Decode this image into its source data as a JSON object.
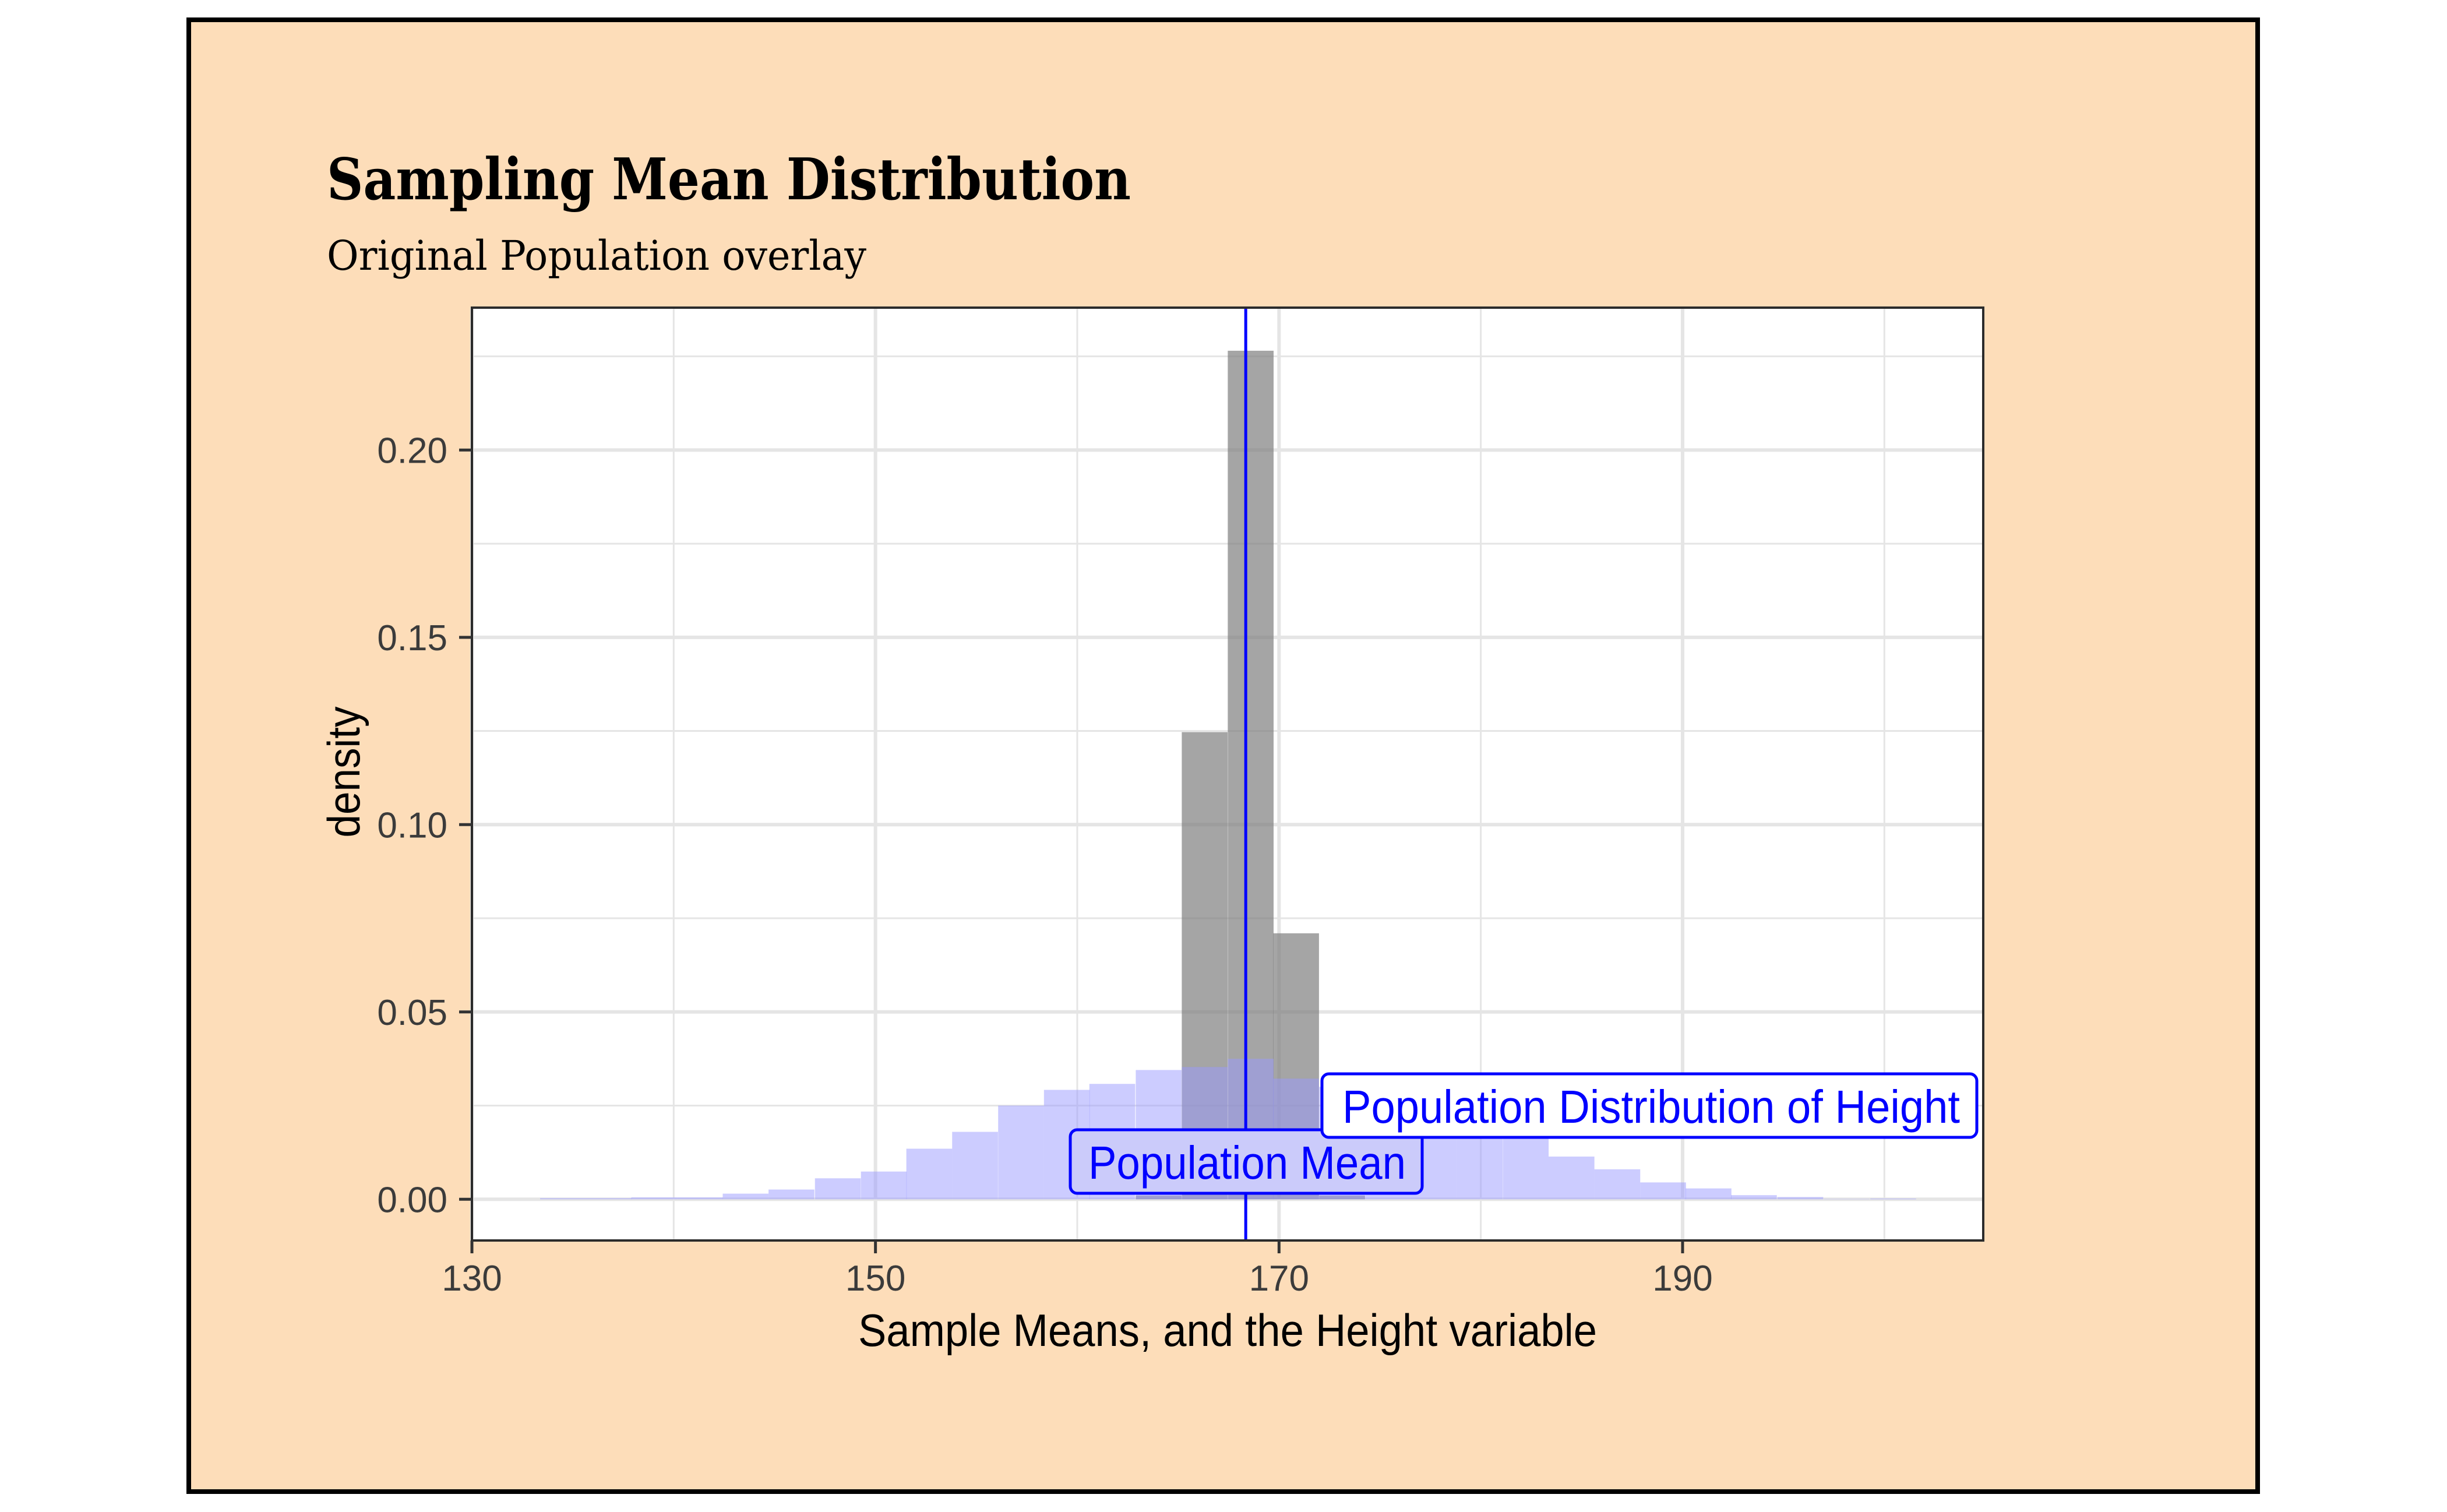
{
  "chart_data": {
    "type": "bar",
    "title": "Sampling Mean Distribution",
    "subtitle": "Original Population overlay",
    "xlabel": "Sample Means, and the Height variable",
    "ylabel": "density",
    "xlim": [
      130,
      204.9
    ],
    "ylim": [
      -0.011,
      0.238
    ],
    "x_ticks": [
      130,
      150,
      170,
      190
    ],
    "x_tick_labels": [
      "130",
      "150",
      "170",
      "190"
    ],
    "y_ticks": [
      0.0,
      0.05,
      0.1,
      0.15,
      0.2
    ],
    "y_tick_labels": [
      "0.00",
      "0.05",
      "0.10",
      "0.15",
      "0.20"
    ],
    "grid": true,
    "colors": {
      "background": "#FDDDB9",
      "panel": "#FFFFFF",
      "grid": "#E5E5E5",
      "sample_means_fill": "#7F7F7F",
      "population_fill": "#9999FF",
      "mean_line": "#0000FF",
      "label_text": "#0000FF"
    },
    "series": [
      {
        "name": "Population Distribution of Height",
        "bin_width": 2.27,
        "bins": [
          {
            "x0": 133.38,
            "density": 0.0003
          },
          {
            "x0": 135.65,
            "density": 0.0003
          },
          {
            "x0": 137.9,
            "density": 0.0005
          },
          {
            "x0": 140.17,
            "density": 0.0005
          },
          {
            "x0": 142.43,
            "density": 0.0015
          },
          {
            "x0": 144.7,
            "density": 0.0026
          },
          {
            "x0": 147.0,
            "density": 0.0056
          },
          {
            "x0": 149.28,
            "density": 0.0074
          },
          {
            "x0": 151.53,
            "density": 0.0135
          },
          {
            "x0": 153.8,
            "density": 0.018
          },
          {
            "x0": 156.08,
            "density": 0.025
          },
          {
            "x0": 158.35,
            "density": 0.0292
          },
          {
            "x0": 160.6,
            "density": 0.0308
          },
          {
            "x0": 162.9,
            "density": 0.0345
          },
          {
            "x0": 165.18,
            "density": 0.0353
          },
          {
            "x0": 167.46,
            "density": 0.0375
          },
          {
            "x0": 169.71,
            "density": 0.0322
          },
          {
            "x0": 171.99,
            "density": 0.03
          },
          {
            "x0": 174.27,
            "density": 0.028
          },
          {
            "x0": 176.54,
            "density": 0.025
          },
          {
            "x0": 178.81,
            "density": 0.021
          },
          {
            "x0": 181.09,
            "density": 0.018
          },
          {
            "x0": 183.36,
            "density": 0.0114
          },
          {
            "x0": 185.63,
            "density": 0.008
          },
          {
            "x0": 187.9,
            "density": 0.0045
          },
          {
            "x0": 190.15,
            "density": 0.0029
          },
          {
            "x0": 192.4,
            "density": 0.0011
          },
          {
            "x0": 194.7,
            "density": 0.0006
          },
          {
            "x0": 197.0,
            "density": 0.0001
          },
          {
            "x0": 199.3,
            "density": 0.0002
          }
        ]
      },
      {
        "name": "Sample Means",
        "bin_width": 2.27,
        "bins": [
          {
            "x0": 162.9,
            "density": 0.001
          },
          {
            "x0": 165.18,
            "density": 0.1247
          },
          {
            "x0": 167.46,
            "density": 0.2265
          },
          {
            "x0": 169.71,
            "density": 0.071
          },
          {
            "x0": 171.99,
            "density": 0.001
          }
        ]
      }
    ],
    "vlines": [
      {
        "name": "Population Mean",
        "x": 168.35
      }
    ],
    "annotations": [
      {
        "text": "Population Mean",
        "x": 168.35,
        "y": 0.001,
        "fill": "#CBCBFA"
      },
      {
        "text": "Population Distribution of Height",
        "x": 188.3,
        "y": 0.0165,
        "fill": "#FFFFFF"
      }
    ]
  }
}
